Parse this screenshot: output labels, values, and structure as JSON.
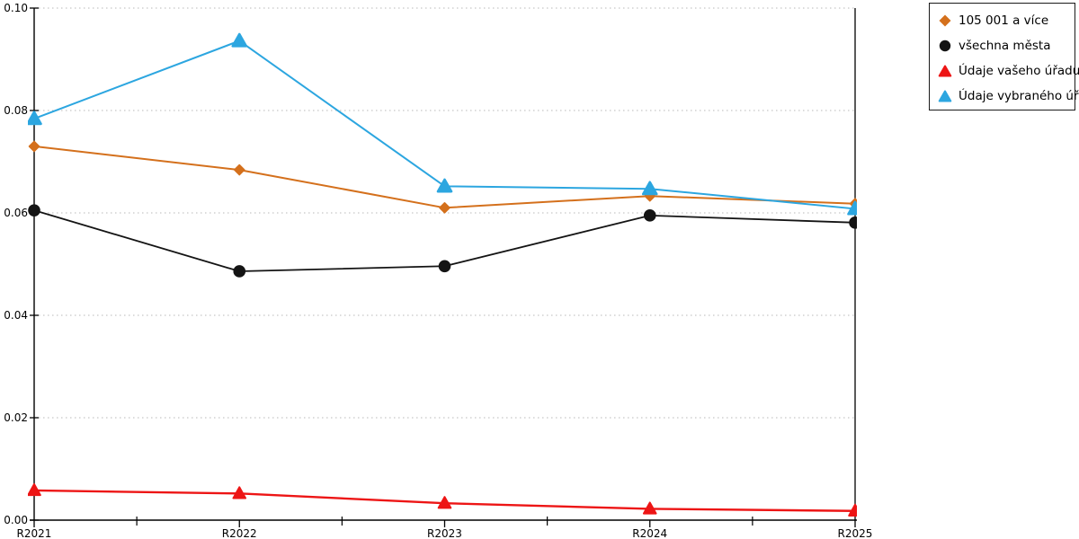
{
  "chart_data": {
    "type": "line",
    "title": "",
    "xlabel": "",
    "ylabel": "",
    "categories": [
      "R2021",
      "R2022",
      "R2023",
      "R2024",
      "R2025"
    ],
    "series": [
      {
        "name": "105 001 a více",
        "color": "#d4701c",
        "marker": "diamond",
        "values": [
          0.073,
          0.0684,
          0.061,
          0.0633,
          0.0618
        ]
      },
      {
        "name": "všechna města",
        "color": "#141414",
        "marker": "circle",
        "values": [
          0.0605,
          0.0486,
          0.0496,
          0.0595,
          0.0581
        ]
      },
      {
        "name": "Údaje vašeho úřadu",
        "color": "#ed1515",
        "marker": "triangle",
        "values": [
          0.0058,
          0.0052,
          0.0033,
          0.0022,
          0.0018
        ]
      },
      {
        "name": "Údaje vybraného úřadu",
        "color": "#2ca6e0",
        "marker": "triangle",
        "values": [
          0.0784,
          0.0936,
          0.0652,
          0.0647,
          0.0608
        ]
      }
    ],
    "ylim": [
      0,
      0.1
    ],
    "ytick_step": 0.02,
    "ytick_labels": [
      "0.00",
      "0.02",
      "0.04",
      "0.06",
      "0.08",
      "0.10"
    ],
    "grid": "horizontal-dotted",
    "grid_color": "#b8b8b8",
    "axis_color": "#000000",
    "legend_position": "top-right-outside"
  }
}
